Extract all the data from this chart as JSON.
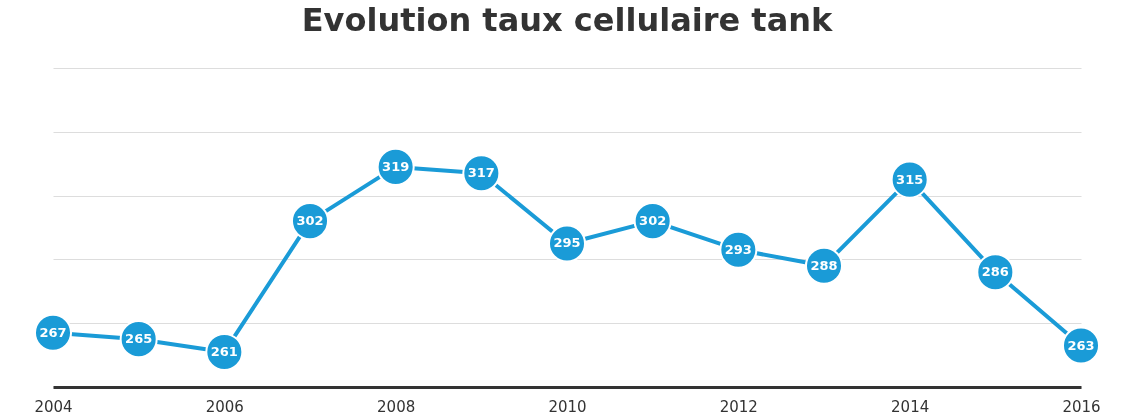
{
  "chart_data": {
    "type": "line",
    "title": "Evolution taux cellulaire tank",
    "x": [
      2004,
      2005,
      2006,
      2007,
      2008,
      2009,
      2010,
      2011,
      2012,
      2013,
      2014,
      2015,
      2016
    ],
    "series": [
      {
        "color": "#1a9bd7",
        "values": [
          267,
          265,
          261,
          302,
          319,
          317,
          295,
          302,
          293,
          288,
          315,
          286,
          263
        ]
      }
    ],
    "xlim": [
      2004,
      2016
    ],
    "xticks": [
      2004,
      2006,
      2008,
      2010,
      2012,
      2014,
      2016
    ],
    "ylim": [
      250,
      350
    ],
    "yticks": [
      {
        "value": 250,
        "label": null
      },
      {
        "value": 270,
        "label": null
      },
      {
        "value": 290,
        "label": null
      },
      {
        "value": 310,
        "label": null
      },
      {
        "value": 330,
        "label": null
      },
      {
        "value": 350,
        "label": null
      }
    ],
    "tick_labels": "x",
    "grid": "y",
    "marker": "circle",
    "line_style": "solid",
    "data_labels": true
  }
}
